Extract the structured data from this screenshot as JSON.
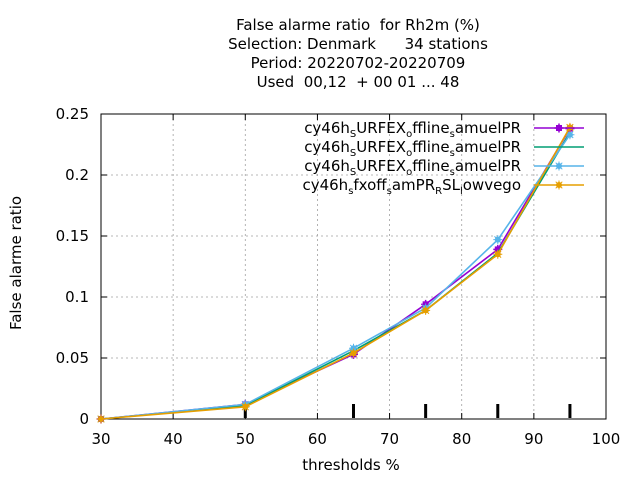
{
  "chart_data": {
    "type": "line",
    "title_lines": [
      "False alarme ratio  for Rh2m (%)",
      "Selection: Denmark      34 stations",
      "Period: 20220702-20220709",
      "Used  00,12  + 00 01 ... 48"
    ],
    "xlabel": "thresholds %",
    "ylabel": "False alarme ratio",
    "xlim": [
      30,
      100
    ],
    "ylim": [
      0,
      0.25
    ],
    "xticks": [
      "30",
      "40",
      "50",
      "60",
      "70",
      "80",
      "90",
      "100"
    ],
    "yticks": [
      "0",
      "0.05",
      "0.1",
      "0.15",
      "0.2",
      "0.25"
    ],
    "grid": true,
    "legend_position": "top-right",
    "threshold_markers": [
      50,
      65,
      75,
      85,
      95
    ],
    "series": [
      {
        "name": "cy46h_SURFEX_offline_samuelPR",
        "color": "#9400d3",
        "marker": "plus-box",
        "x": [
          30,
          50,
          65,
          75,
          85,
          95
        ],
        "y": [
          0.0,
          0.012,
          0.053,
          0.094,
          0.139,
          0.238
        ]
      },
      {
        "name": "cy46h_SURFEX_offline_samuelPR",
        "color": "#009e73",
        "marker": "none",
        "x": [
          30,
          50,
          65,
          75,
          85,
          95
        ],
        "y": [
          0.0,
          0.011,
          0.056,
          0.089,
          0.136,
          0.235
        ]
      },
      {
        "name": "cy46h_SURFEX_offline_samuelPR",
        "color": "#56b4e9",
        "marker": "star",
        "x": [
          30,
          50,
          65,
          75,
          85,
          95
        ],
        "y": [
          0.0,
          0.012,
          0.058,
          0.091,
          0.147,
          0.233
        ]
      },
      {
        "name": "cy46h_sfxoff_samPR_RSL_lowvego",
        "color": "#e69f00",
        "marker": "star",
        "x": [
          30,
          50,
          65,
          75,
          85,
          95
        ],
        "y": [
          0.0,
          0.01,
          0.054,
          0.089,
          0.135,
          0.239
        ]
      }
    ]
  }
}
